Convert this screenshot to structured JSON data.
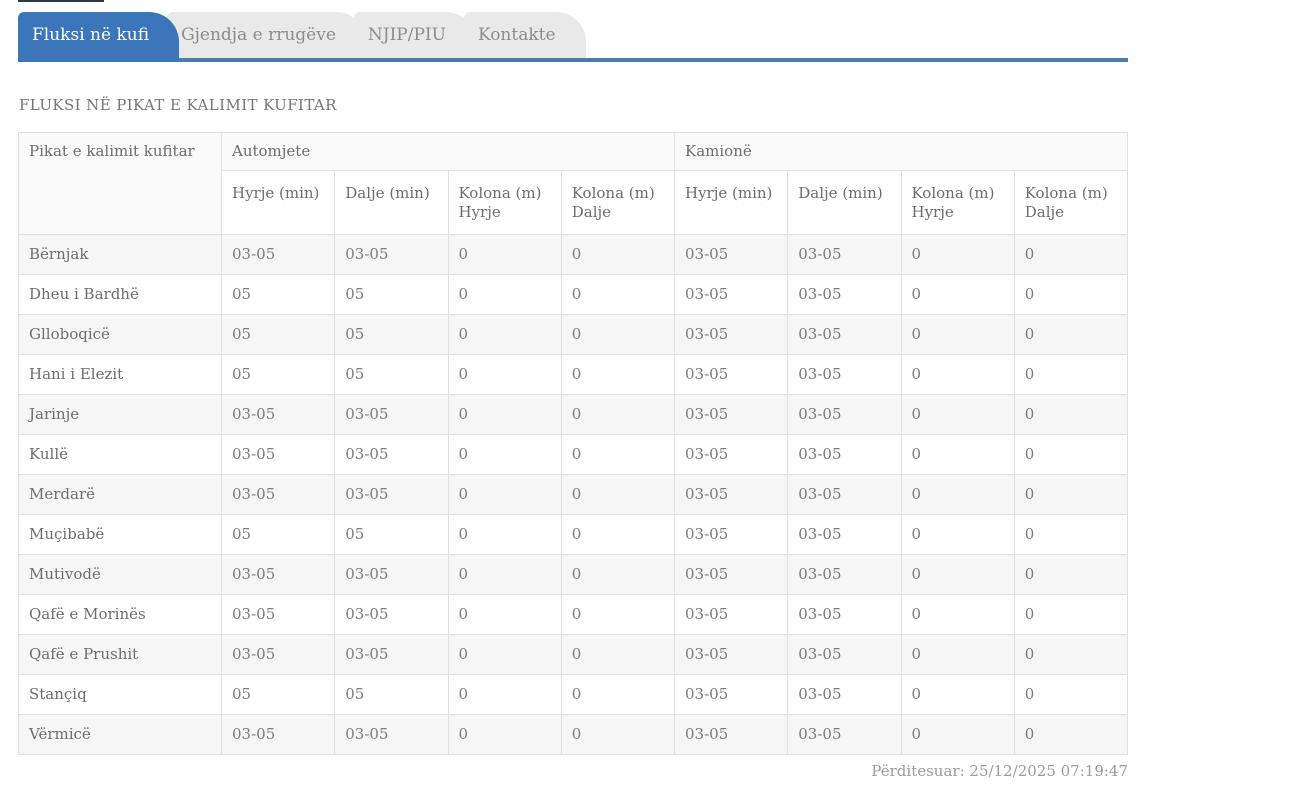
{
  "tabs": [
    {
      "label": "Fluksi në kufi",
      "active": true
    },
    {
      "label": "Gjendja e rrugëve",
      "active": false
    },
    {
      "label": "NJIP/PIU",
      "active": false
    },
    {
      "label": "Kontakte",
      "active": false
    }
  ],
  "page_title": "FLUKSI NË PIKAT E KALIMIT KUFITAR",
  "table": {
    "row_header": "Pikat e kalimit kufitar",
    "groups": [
      {
        "label": "Automjete"
      },
      {
        "label": "Kamionë"
      }
    ],
    "sub_headers": [
      "Hyrje (min)",
      "Dalje (min)",
      "Kolona (m) Hyrje",
      "Kolona (m) Dalje",
      "Hyrje (min)",
      "Dalje (min)",
      "Kolona (m) Hyrje",
      "Kolona (m) Dalje"
    ],
    "rows": [
      {
        "name": "Bërnjak",
        "values": [
          "03-05",
          "03-05",
          "0",
          "0",
          "03-05",
          "03-05",
          "0",
          "0"
        ]
      },
      {
        "name": "Dheu i Bardhë",
        "values": [
          "05",
          "05",
          "0",
          "0",
          "03-05",
          "03-05",
          "0",
          "0"
        ]
      },
      {
        "name": "Glloboqicë",
        "values": [
          "05",
          "05",
          "0",
          "0",
          "03-05",
          "03-05",
          "0",
          "0"
        ]
      },
      {
        "name": "Hani i Elezit",
        "values": [
          "05",
          "05",
          "0",
          "0",
          "03-05",
          "03-05",
          "0",
          "0"
        ]
      },
      {
        "name": "Jarinje",
        "values": [
          "03-05",
          "03-05",
          "0",
          "0",
          "03-05",
          "03-05",
          "0",
          "0"
        ]
      },
      {
        "name": "Kullë",
        "values": [
          "03-05",
          "03-05",
          "0",
          "0",
          "03-05",
          "03-05",
          "0",
          "0"
        ]
      },
      {
        "name": "Merdarë",
        "values": [
          "03-05",
          "03-05",
          "0",
          "0",
          "03-05",
          "03-05",
          "0",
          "0"
        ]
      },
      {
        "name": "Muçibabë",
        "values": [
          "05",
          "05",
          "0",
          "0",
          "03-05",
          "03-05",
          "0",
          "0"
        ]
      },
      {
        "name": "Mutivodë",
        "values": [
          "03-05",
          "03-05",
          "0",
          "0",
          "03-05",
          "03-05",
          "0",
          "0"
        ]
      },
      {
        "name": "Qafë e Morinës",
        "values": [
          "03-05",
          "03-05",
          "0",
          "0",
          "03-05",
          "03-05",
          "0",
          "0"
        ]
      },
      {
        "name": "Qafë e Prushit",
        "values": [
          "03-05",
          "03-05",
          "0",
          "0",
          "03-05",
          "03-05",
          "0",
          "0"
        ]
      },
      {
        "name": "Stançiq",
        "values": [
          "05",
          "05",
          "0",
          "0",
          "03-05",
          "03-05",
          "0",
          "0"
        ]
      },
      {
        "name": "Vërmicë",
        "values": [
          "03-05",
          "03-05",
          "0",
          "0",
          "03-05",
          "03-05",
          "0",
          "0"
        ]
      }
    ]
  },
  "footer": {
    "updated": "Përditesuar: 25/12/2025 07:19:47"
  },
  "colors": {
    "active_tab": "#3b76bb",
    "tab_underline": "#4d7ba8",
    "inactive_tab_bg": "#e9e9e9",
    "stripe_row_bg": "#f6f6f6",
    "border": "#e0e0e0"
  }
}
